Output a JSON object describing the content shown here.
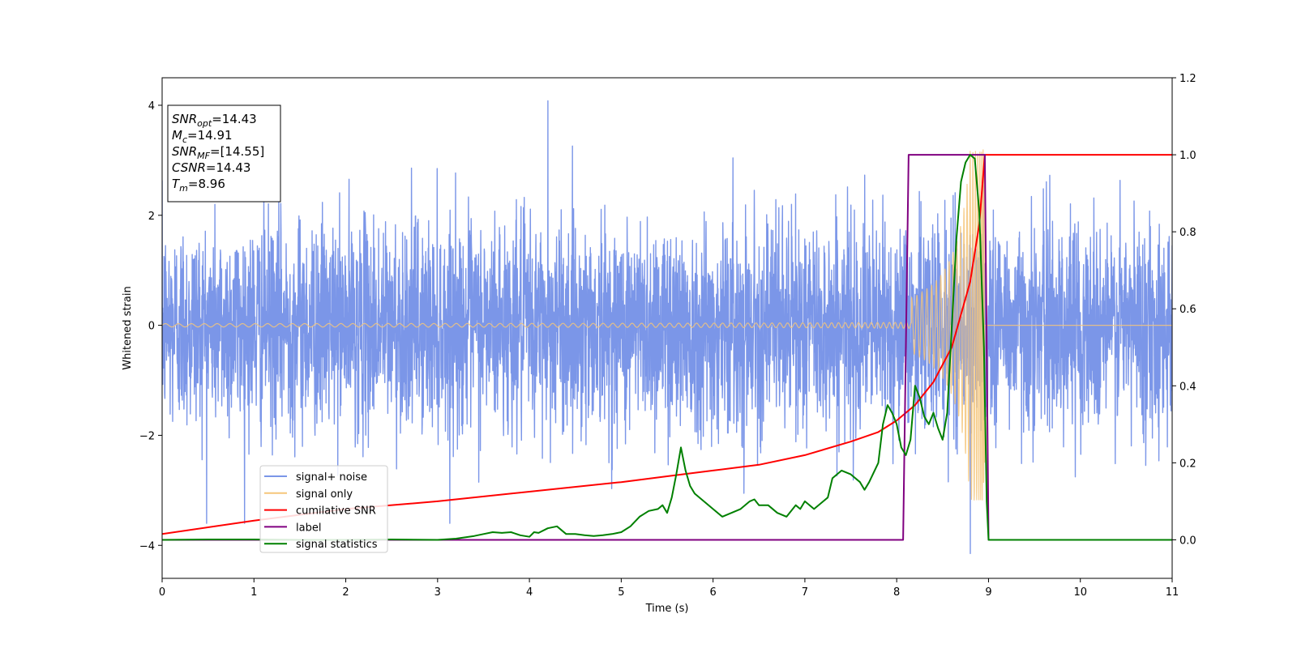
{
  "chart_data": {
    "type": "line",
    "xlabel": "Time (s)",
    "ylabel": "Whitened strain",
    "xlim": [
      0,
      11
    ],
    "ylim_left": [
      -4.6,
      4.5
    ],
    "ylim_right": [
      -0.1,
      1.2
    ],
    "x_ticks": [
      0,
      1,
      2,
      3,
      4,
      5,
      6,
      7,
      8,
      9,
      10,
      11
    ],
    "y_ticks_left": [
      -4,
      -2,
      0,
      2,
      4
    ],
    "y_ticks_left_labels": [
      "−4",
      "−2",
      "0",
      "2",
      "4"
    ],
    "y_ticks_right": [
      0.0,
      0.2,
      0.4,
      0.6,
      0.8,
      1.0,
      1.2
    ],
    "y_ticks_right_labels": [
      "0.0",
      "0.2",
      "0.4",
      "0.6",
      "0.8",
      "1.0",
      "1.2"
    ],
    "grid": false,
    "legend_position": "lower-left",
    "info_box": [
      {
        "var": "SNR",
        "sub": "opt",
        "value": "=14.43"
      },
      {
        "var": "M",
        "sub": "c",
        "value": "=14.91"
      },
      {
        "var": "SNR",
        "sub": "MF",
        "value": "=[14.55]"
      },
      {
        "var": "CSNR",
        "sub": "",
        "value": "=14.43"
      },
      {
        "var": "T",
        "sub": "m",
        "value": "=8.96"
      }
    ],
    "series": [
      {
        "name": "signal+ noise",
        "axis": "left",
        "color": "#7b96e8",
        "kind": "noise",
        "sigma": 0.95,
        "peak_max": 4.08,
        "peak_min": -4.15
      },
      {
        "name": "signal only",
        "axis": "left",
        "color": "#f5c67a",
        "kind": "chirp",
        "amplitude_start": 0.03,
        "amplitude_end": 3.2,
        "t_merge": 8.96
      },
      {
        "name": "cumilative SNR",
        "axis": "right",
        "color": "#ff0000",
        "x": [
          0,
          1,
          2,
          3,
          4,
          5,
          5.5,
          6,
          6.5,
          7,
          7.5,
          7.8,
          8.0,
          8.2,
          8.4,
          8.6,
          8.8,
          8.9,
          8.96,
          9.0,
          11
        ],
        "y": [
          0.015,
          0.05,
          0.08,
          0.1,
          0.125,
          0.15,
          0.165,
          0.18,
          0.195,
          0.22,
          0.255,
          0.28,
          0.31,
          0.35,
          0.41,
          0.5,
          0.67,
          0.82,
          1.0,
          1.0,
          1.0
        ]
      },
      {
        "name": "label",
        "axis": "right",
        "color": "#800080",
        "x": [
          0,
          8.07,
          8.13,
          8.96,
          9.0,
          11
        ],
        "y": [
          0.0,
          0.0,
          1.0,
          1.0,
          0.0,
          0.0
        ]
      },
      {
        "name": "signal statistics",
        "axis": "right",
        "color": "#008000",
        "x": [
          0,
          0.5,
          1,
          1.5,
          2,
          2.5,
          3,
          3.2,
          3.4,
          3.5,
          3.6,
          3.7,
          3.8,
          3.9,
          4.0,
          4.05,
          4.1,
          4.2,
          4.3,
          4.4,
          4.5,
          4.6,
          4.7,
          4.8,
          4.9,
          5.0,
          5.1,
          5.2,
          5.3,
          5.4,
          5.45,
          5.5,
          5.55,
          5.6,
          5.65,
          5.7,
          5.75,
          5.8,
          5.9,
          6.0,
          6.1,
          6.2,
          6.3,
          6.4,
          6.45,
          6.5,
          6.6,
          6.7,
          6.8,
          6.9,
          6.95,
          7.0,
          7.1,
          7.2,
          7.25,
          7.3,
          7.4,
          7.5,
          7.6,
          7.65,
          7.7,
          7.8,
          7.85,
          7.9,
          7.95,
          8.0,
          8.05,
          8.1,
          8.15,
          8.2,
          8.25,
          8.3,
          8.35,
          8.4,
          8.45,
          8.5,
          8.55,
          8.6,
          8.65,
          8.7,
          8.75,
          8.8,
          8.85,
          8.9,
          8.95,
          8.98,
          9.0,
          9.5,
          10,
          11
        ],
        "y": [
          0.0,
          0.001,
          0.001,
          0.0,
          0.0,
          0.001,
          0.0,
          0.003,
          0.01,
          0.015,
          0.02,
          0.018,
          0.02,
          0.012,
          0.008,
          0.02,
          0.018,
          0.03,
          0.035,
          0.015,
          0.015,
          0.012,
          0.01,
          0.012,
          0.015,
          0.02,
          0.035,
          0.06,
          0.075,
          0.08,
          0.09,
          0.07,
          0.11,
          0.17,
          0.24,
          0.18,
          0.14,
          0.12,
          0.1,
          0.08,
          0.06,
          0.07,
          0.08,
          0.1,
          0.105,
          0.09,
          0.09,
          0.07,
          0.06,
          0.09,
          0.08,
          0.1,
          0.08,
          0.1,
          0.11,
          0.16,
          0.18,
          0.17,
          0.15,
          0.13,
          0.15,
          0.2,
          0.3,
          0.35,
          0.33,
          0.3,
          0.24,
          0.22,
          0.26,
          0.4,
          0.37,
          0.32,
          0.3,
          0.33,
          0.29,
          0.26,
          0.33,
          0.55,
          0.78,
          0.93,
          0.98,
          1.0,
          0.99,
          0.85,
          0.5,
          0.1,
          0.0,
          0.0,
          0.0,
          0.0
        ]
      }
    ]
  }
}
